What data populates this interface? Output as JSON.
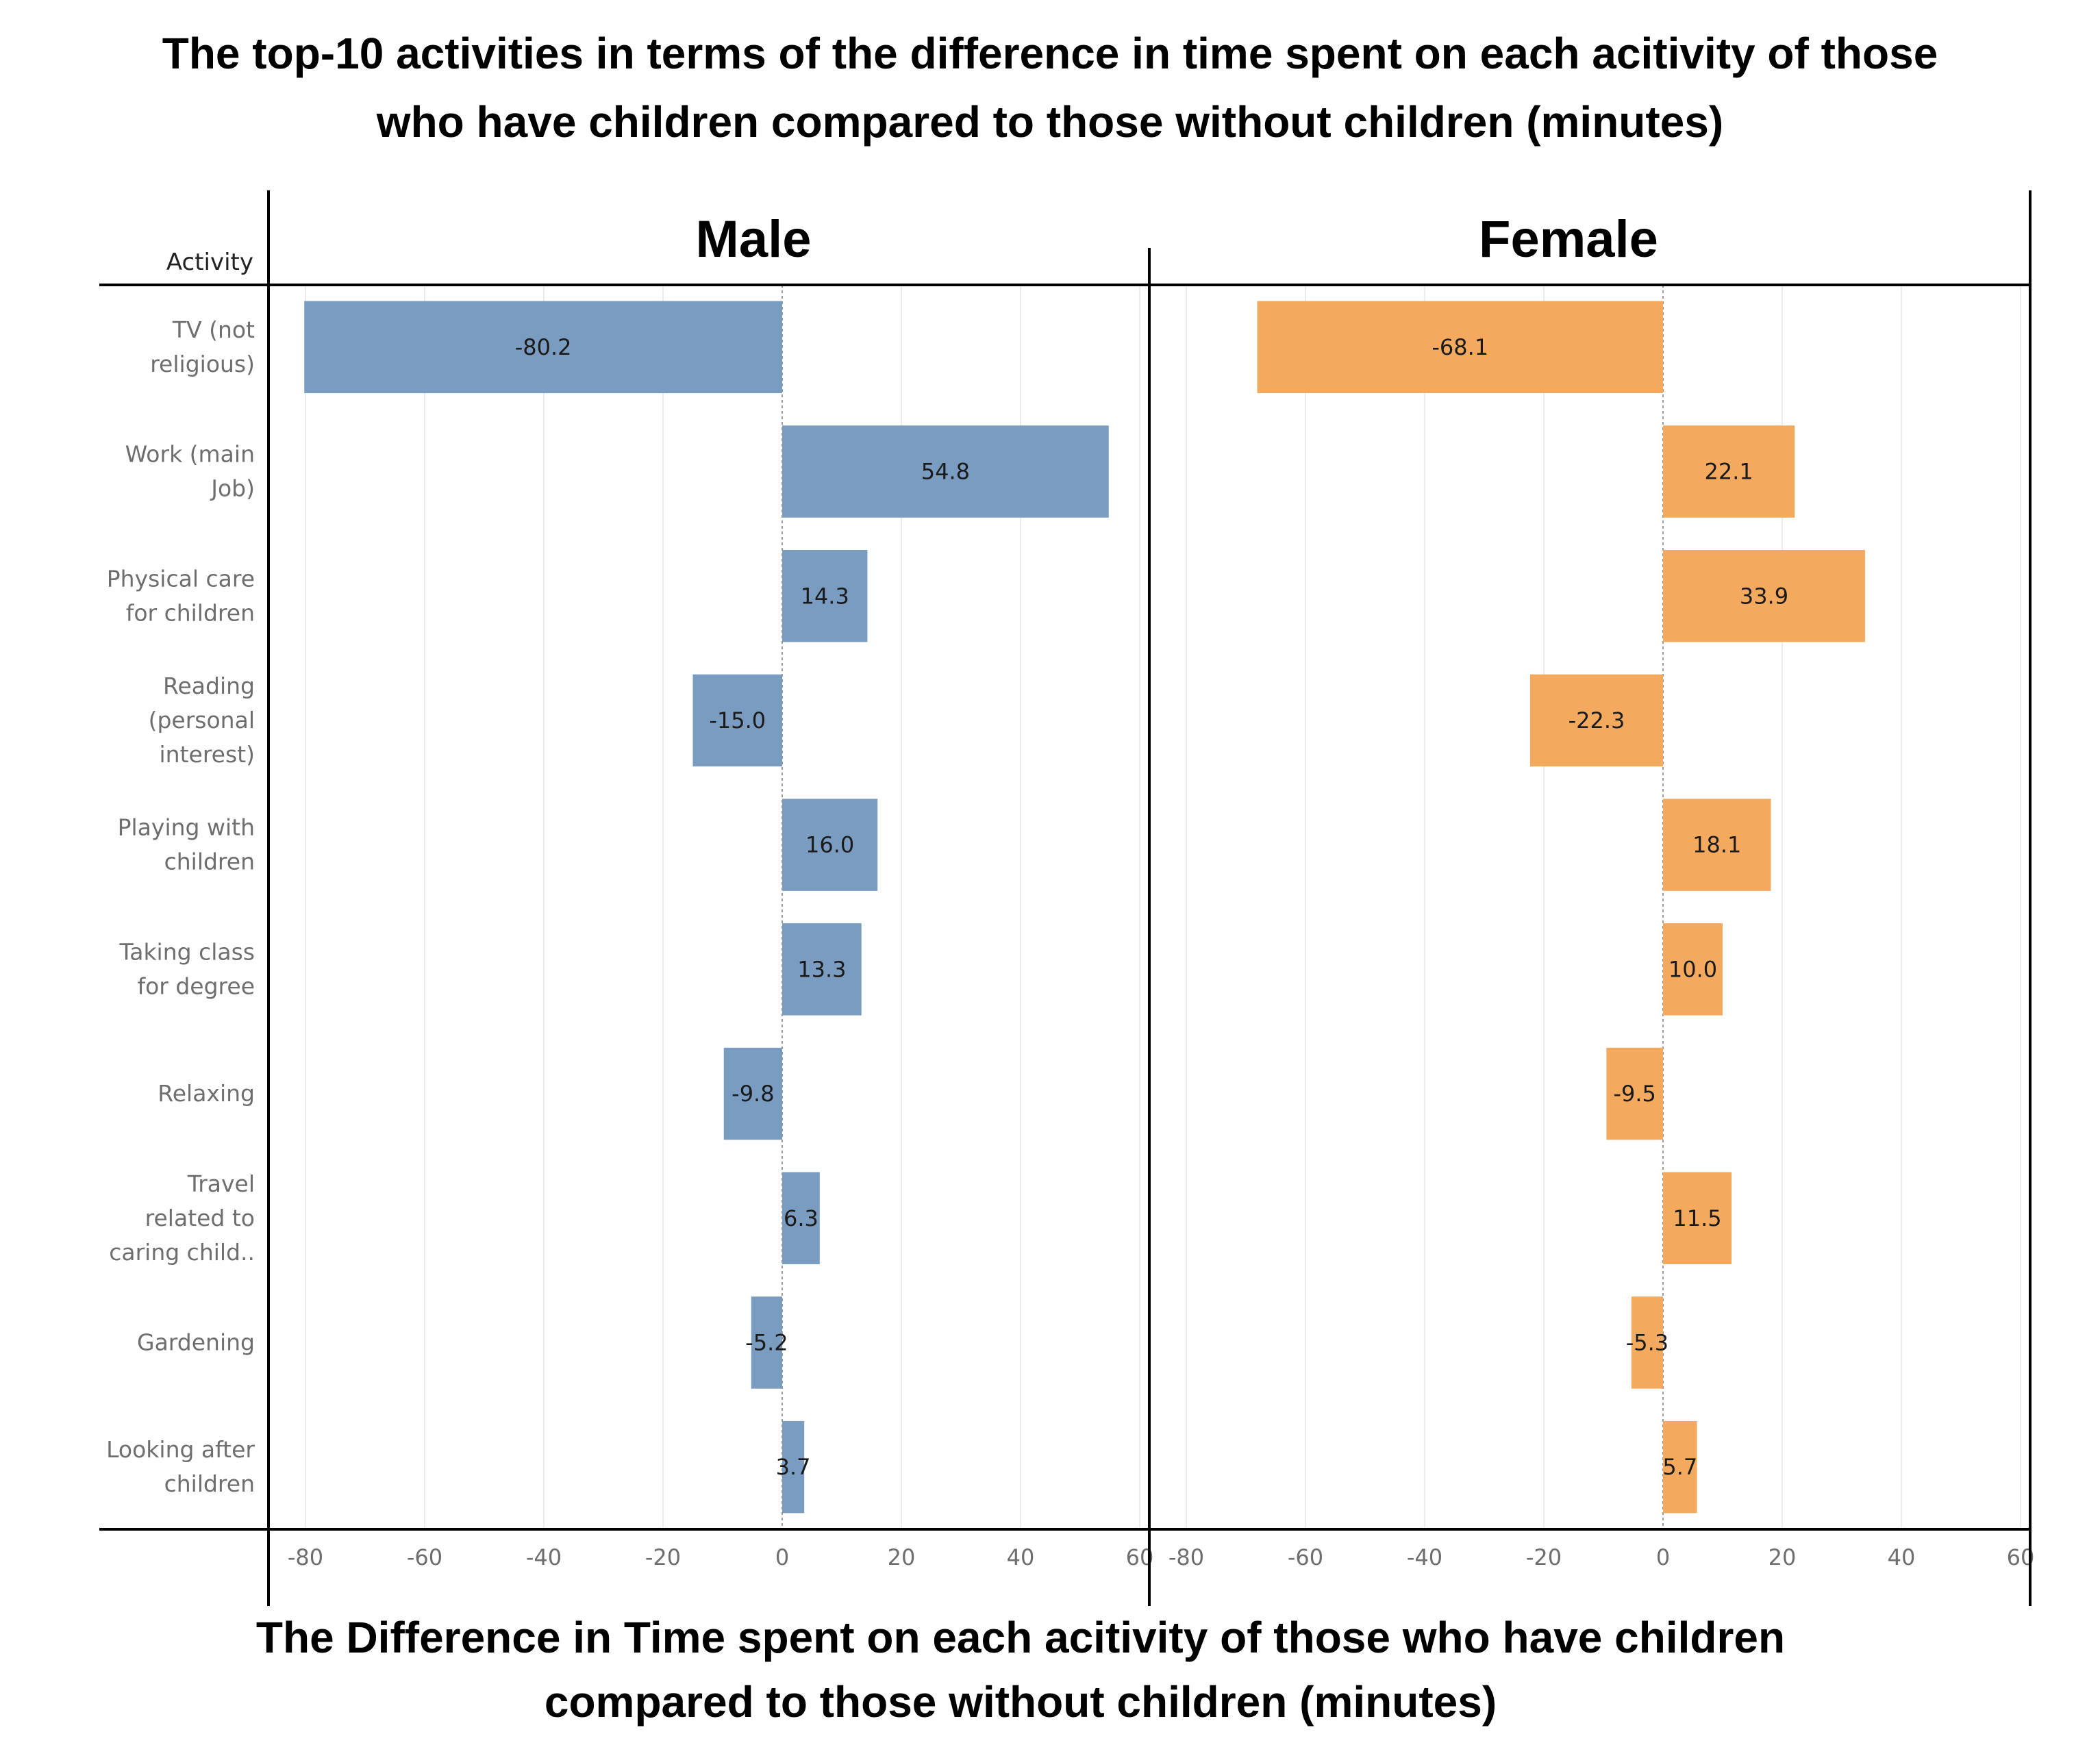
{
  "title_lines": [
    "The top-10 activities in terms of the difference in time spent on each acitivity of those",
    "who have children compared to those without children (minutes)"
  ],
  "footer_lines": [
    "The Difference in Time spent on each acitivity of those who have children",
    "compared to those without children (minutes)"
  ],
  "row_header": "Activity",
  "chart_data": {
    "type": "bar",
    "orientation": "horizontal",
    "title": "The top-10 activities in terms of the difference in time spent on each acitivity of those who have children compared to those without children (minutes)",
    "xlabel": "The Difference in Time spent on each acitivity of those who have children compared to those without children (minutes)",
    "ylabel": "Activity",
    "xlim": [
      -85,
      62
    ],
    "x_ticks": [
      -80,
      -60,
      -40,
      -20,
      0,
      20,
      40,
      60
    ],
    "grid": true,
    "categories": [
      [
        "TV (not",
        "religious)"
      ],
      [
        "Work (main",
        "Job)"
      ],
      [
        "Physical care",
        "for children"
      ],
      [
        "Reading",
        "(personal",
        "interest)"
      ],
      [
        "Playing with",
        "children"
      ],
      [
        "Taking class",
        "for degree"
      ],
      [
        "Relaxing"
      ],
      [
        "Travel",
        "related to",
        "caring child.."
      ],
      [
        "Gardening"
      ],
      [
        "Looking after",
        "children"
      ]
    ],
    "series": [
      {
        "name": "Male",
        "color": "#7a9cc0",
        "values": [
          -80.2,
          54.8,
          14.3,
          -15.0,
          16.0,
          13.3,
          -9.8,
          6.3,
          -5.2,
          3.7
        ],
        "labels": [
          "-80.2",
          "54.8",
          "14.3",
          "-15.0",
          "16.0",
          "13.3",
          "-9.8",
          "6.3",
          "-5.2",
          "3.7"
        ]
      },
      {
        "name": "Female",
        "color": "#f3aa5f",
        "values": [
          -68.1,
          22.1,
          33.9,
          -22.3,
          18.1,
          10.0,
          -9.5,
          11.5,
          -5.3,
          5.7
        ],
        "labels": [
          "-68.1",
          "22.1",
          "33.9",
          "-22.3",
          "18.1",
          "10.0",
          "-9.5",
          "11.5",
          "-5.3",
          "5.7"
        ]
      }
    ]
  }
}
